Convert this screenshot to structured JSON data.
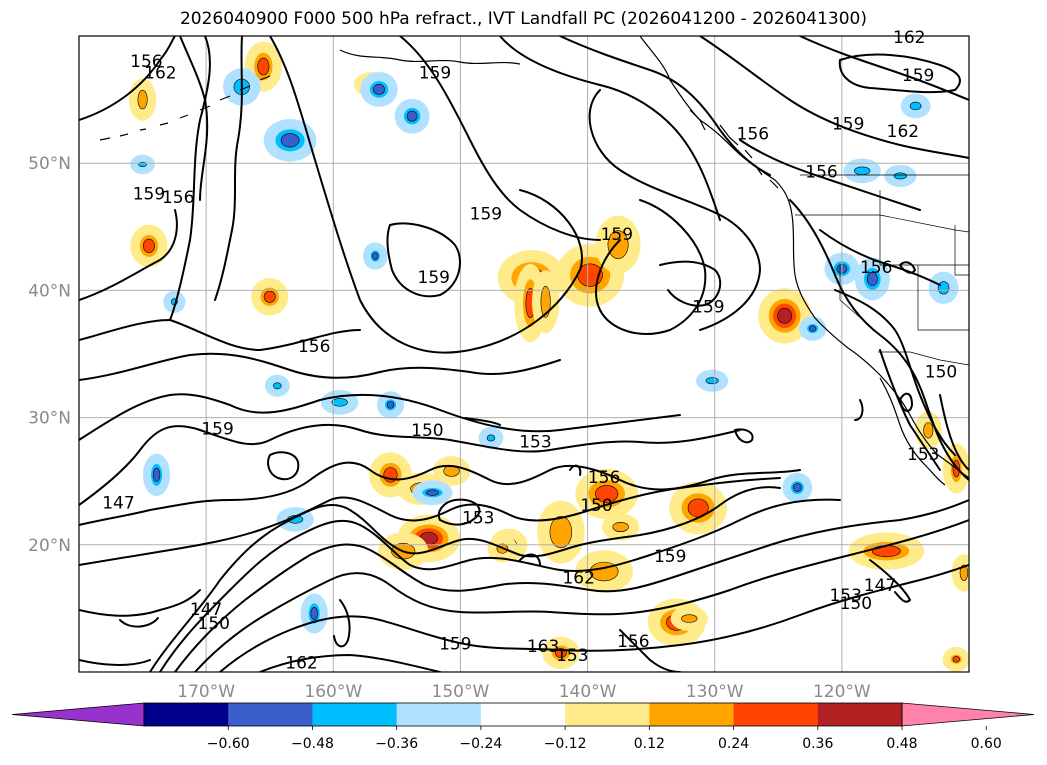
{
  "title": "2026040900 F000 500 hPa refract., IVT Landfall PC (2026041200 - 2026041300)",
  "map": {
    "projection": "PlateCarree",
    "lon_range": [
      -180,
      -110
    ],
    "lat_range": [
      10,
      60
    ],
    "lat_ticks": [
      {
        "value": 20,
        "label": "20°N"
      },
      {
        "value": 30,
        "label": "30°N"
      },
      {
        "value": 40,
        "label": "40°N"
      },
      {
        "value": 50,
        "label": "50°N"
      }
    ],
    "lon_ticks": [
      {
        "value": -170,
        "label": "170°W"
      },
      {
        "value": -160,
        "label": "160°W"
      },
      {
        "value": -150,
        "label": "150°W"
      },
      {
        "value": -140,
        "label": "140°W"
      },
      {
        "value": -130,
        "label": "130°W"
      },
      {
        "value": -120,
        "label": "120°W"
      }
    ],
    "grid": true,
    "contour_labels": [
      {
        "text": "156",
        "lon": -174.7,
        "lat": 57.8
      },
      {
        "text": "162",
        "lon": -173.6,
        "lat": 56.9
      },
      {
        "text": "159",
        "lon": -152.0,
        "lat": 56.9
      },
      {
        "text": "162",
        "lon": -114.7,
        "lat": 59.7
      },
      {
        "text": "159",
        "lon": -114.0,
        "lat": 56.7
      },
      {
        "text": "159",
        "lon": -119.5,
        "lat": 52.9
      },
      {
        "text": "162",
        "lon": -115.2,
        "lat": 52.3
      },
      {
        "text": "156",
        "lon": -127.0,
        "lat": 52.1
      },
      {
        "text": "156",
        "lon": -121.6,
        "lat": 49.1
      },
      {
        "text": "159",
        "lon": -174.5,
        "lat": 47.4
      },
      {
        "text": "156",
        "lon": -172.2,
        "lat": 47.1
      },
      {
        "text": "159",
        "lon": -148.0,
        "lat": 45.8
      },
      {
        "text": "159",
        "lon": -137.7,
        "lat": 44.2
      },
      {
        "text": "159",
        "lon": -152.1,
        "lat": 40.8
      },
      {
        "text": "156",
        "lon": -117.3,
        "lat": 41.6
      },
      {
        "text": "159",
        "lon": -130.5,
        "lat": 38.5
      },
      {
        "text": "156",
        "lon": -161.5,
        "lat": 35.4
      },
      {
        "text": "150",
        "lon": -112.2,
        "lat": 33.4
      },
      {
        "text": "159",
        "lon": -169.1,
        "lat": 28.9
      },
      {
        "text": "150",
        "lon": -152.6,
        "lat": 28.8
      },
      {
        "text": "153",
        "lon": -144.1,
        "lat": 27.9
      },
      {
        "text": "153",
        "lon": -113.6,
        "lat": 26.9
      },
      {
        "text": "156",
        "lon": -138.7,
        "lat": 25.1
      },
      {
        "text": "147",
        "lon": -176.9,
        "lat": 23.1
      },
      {
        "text": "150",
        "lon": -139.3,
        "lat": 22.9
      },
      {
        "text": "153",
        "lon": -148.6,
        "lat": 21.9
      },
      {
        "text": "159",
        "lon": -133.5,
        "lat": 18.9
      },
      {
        "text": "162",
        "lon": -140.7,
        "lat": 17.2
      },
      {
        "text": "153",
        "lon": -119.7,
        "lat": 15.8
      },
      {
        "text": "150",
        "lon": -118.9,
        "lat": 15.2
      },
      {
        "text": "147",
        "lon": -117.0,
        "lat": 16.6
      },
      {
        "text": "147",
        "lon": -170.0,
        "lat": 14.7
      },
      {
        "text": "150",
        "lon": -169.4,
        "lat": 13.6
      },
      {
        "text": "159",
        "lon": -150.4,
        "lat": 12.0
      },
      {
        "text": "156",
        "lon": -136.4,
        "lat": 12.2
      },
      {
        "text": "153",
        "lon": -141.2,
        "lat": 11.1
      },
      {
        "text": "163",
        "lon": -143.5,
        "lat": 11.8
      },
      {
        "text": "162",
        "lon": -162.5,
        "lat": 10.5
      }
    ],
    "positive_blobs": [
      {
        "lon": -144.4,
        "lat": 41.0,
        "rx": 2.2,
        "ry": 1.7,
        "level": 0.36
      },
      {
        "lon": -139.8,
        "lat": 41.2,
        "rx": 2.2,
        "ry": 2.0,
        "level": 0.36
      },
      {
        "lon": -137.6,
        "lat": 43.6,
        "rx": 1.3,
        "ry": 1.8,
        "level": 0.24
      },
      {
        "lon": -142.1,
        "lat": 21.0,
        "rx": 1.4,
        "ry": 2.0,
        "level": 0.24
      },
      {
        "lon": -152.5,
        "lat": 20.5,
        "rx": 2.0,
        "ry": 1.4,
        "level": 0.48
      },
      {
        "lon": -154.5,
        "lat": 19.5,
        "rx": 1.5,
        "ry": 1.0,
        "level": 0.24
      },
      {
        "lon": -155.5,
        "lat": 25.5,
        "rx": 1.2,
        "ry": 1.3,
        "level": 0.36
      },
      {
        "lon": -153.0,
        "lat": 24.4,
        "rx": 1.5,
        "ry": 0.8,
        "level": 0.24
      },
      {
        "lon": -150.7,
        "lat": 25.8,
        "rx": 1.0,
        "ry": 0.7,
        "level": 0.24
      },
      {
        "lon": -138.5,
        "lat": 24.0,
        "rx": 2.0,
        "ry": 1.5,
        "level": 0.36
      },
      {
        "lon": -137.4,
        "lat": 21.4,
        "rx": 1.0,
        "ry": 0.6,
        "level": 0.24
      },
      {
        "lon": -144.5,
        "lat": 39.0,
        "rx": 0.8,
        "ry": 2.6,
        "level": 0.36
      },
      {
        "lon": -143.3,
        "lat": 39.1,
        "rx": 0.6,
        "ry": 2.0,
        "level": 0.24
      },
      {
        "lon": -146.2,
        "lat": 20.0,
        "rx": 1.0,
        "ry": 0.8,
        "level": 0.24
      },
      {
        "lon": -138.7,
        "lat": 17.9,
        "rx": 1.8,
        "ry": 1.2,
        "level": 0.24
      },
      {
        "lon": -133.0,
        "lat": 13.9,
        "rx": 1.8,
        "ry": 1.4,
        "level": 0.36
      },
      {
        "lon": -131.3,
        "lat": 22.9,
        "rx": 1.8,
        "ry": 1.6,
        "level": 0.36
      },
      {
        "lon": -124.5,
        "lat": 38.0,
        "rx": 1.6,
        "ry": 1.7,
        "level": 0.48
      },
      {
        "lon": -116.5,
        "lat": 19.5,
        "rx": 2.5,
        "ry": 1.0,
        "level": 0.36
      },
      {
        "lon": -174.5,
        "lat": 43.5,
        "rx": 1.0,
        "ry": 1.2,
        "level": 0.36
      },
      {
        "lon": -165.0,
        "lat": 39.5,
        "rx": 1.0,
        "ry": 1.0,
        "level": 0.36
      },
      {
        "lon": -165.5,
        "lat": 57.6,
        "rx": 1.0,
        "ry": 1.5,
        "level": 0.36
      },
      {
        "lon": -175.0,
        "lat": 55.0,
        "rx": 0.6,
        "ry": 1.2,
        "level": 0.24
      },
      {
        "lon": -157.0,
        "lat": 56.2,
        "rx": 0.9,
        "ry": 0.5,
        "level": 0.24
      },
      {
        "lon": -146.7,
        "lat": 19.7,
        "rx": 0.7,
        "ry": 0.6,
        "level": 0.24
      },
      {
        "lon": -113.2,
        "lat": 29.0,
        "rx": 0.6,
        "ry": 1.0,
        "level": 0.24
      },
      {
        "lon": -111.0,
        "lat": 26.0,
        "rx": 0.6,
        "ry": 1.5,
        "level": 0.36
      },
      {
        "lon": -142.1,
        "lat": 11.5,
        "rx": 1.0,
        "ry": 0.8,
        "level": 0.36
      },
      {
        "lon": -132.0,
        "lat": 14.2,
        "rx": 1.0,
        "ry": 0.5,
        "level": 0.24
      },
      {
        "lon": -110.4,
        "lat": 17.8,
        "rx": 0.5,
        "ry": 1.0,
        "level": 0.24
      },
      {
        "lon": -111.0,
        "lat": 11.0,
        "rx": 0.6,
        "ry": 0.5,
        "level": 0.36
      }
    ],
    "negative_blobs": [
      {
        "lon": -156.4,
        "lat": 55.8,
        "rx": 1.0,
        "ry": 0.9,
        "level": -0.36
      },
      {
        "lon": -163.4,
        "lat": 51.8,
        "rx": 1.6,
        "ry": 1.2,
        "level": -0.36
      },
      {
        "lon": -167.2,
        "lat": 56.0,
        "rx": 1.0,
        "ry": 1.0,
        "level": -0.24
      },
      {
        "lon": -117.6,
        "lat": 40.9,
        "rx": 0.9,
        "ry": 1.2,
        "level": -0.36
      },
      {
        "lon": -120.0,
        "lat": 41.7,
        "rx": 0.9,
        "ry": 0.8,
        "level": -0.36
      },
      {
        "lon": -118.4,
        "lat": 49.4,
        "rx": 1.0,
        "ry": 0.5,
        "level": -0.24
      },
      {
        "lon": -173.9,
        "lat": 25.5,
        "rx": 0.6,
        "ry": 1.2,
        "level": -0.36
      },
      {
        "lon": -161.5,
        "lat": 14.6,
        "rx": 0.6,
        "ry": 1.1,
        "level": -0.36
      },
      {
        "lon": -123.5,
        "lat": 24.5,
        "rx": 0.7,
        "ry": 0.7,
        "level": -0.36
      },
      {
        "lon": -152.2,
        "lat": 24.1,
        "rx": 1.1,
        "ry": 0.5,
        "level": -0.36
      },
      {
        "lon": -159.5,
        "lat": 31.2,
        "rx": 1.0,
        "ry": 0.5,
        "level": -0.24
      },
      {
        "lon": -155.5,
        "lat": 31.0,
        "rx": 0.6,
        "ry": 0.6,
        "level": -0.36
      },
      {
        "lon": -163.0,
        "lat": 22.0,
        "rx": 1.0,
        "ry": 0.5,
        "level": -0.24
      },
      {
        "lon": -130.2,
        "lat": 32.9,
        "rx": 0.8,
        "ry": 0.4,
        "level": -0.24
      },
      {
        "lon": -112.0,
        "lat": 40.2,
        "rx": 0.7,
        "ry": 0.8,
        "level": -0.24
      },
      {
        "lon": -115.4,
        "lat": 49.0,
        "rx": 0.8,
        "ry": 0.4,
        "level": -0.24
      },
      {
        "lon": -114.2,
        "lat": 54.5,
        "rx": 0.7,
        "ry": 0.5,
        "level": -0.24
      },
      {
        "lon": -122.3,
        "lat": 37.0,
        "rx": 0.6,
        "ry": 0.5,
        "level": -0.36
      },
      {
        "lon": -147.6,
        "lat": 28.4,
        "rx": 0.5,
        "ry": 0.4,
        "level": -0.24
      },
      {
        "lon": -156.7,
        "lat": 42.7,
        "rx": 0.5,
        "ry": 0.6,
        "level": -0.36
      },
      {
        "lon": -153.8,
        "lat": 53.7,
        "rx": 0.9,
        "ry": 0.9,
        "level": -0.36
      },
      {
        "lon": -164.4,
        "lat": 32.5,
        "rx": 0.5,
        "ry": 0.4,
        "level": -0.24
      },
      {
        "lon": -172.5,
        "lat": 39.1,
        "rx": 0.4,
        "ry": 0.4,
        "level": -0.24
      },
      {
        "lon": -175.0,
        "lat": 49.9,
        "rx": 0.5,
        "ry": 0.3,
        "level": -0.24
      }
    ]
  },
  "colorbar": {
    "colors": [
      "#9932cc",
      "#00008b",
      "#3a5fcd",
      "#00bfff",
      "#b0e2ff",
      "#ffffff",
      "#ffeb8a",
      "#ffa500",
      "#ff4500",
      "#b22222",
      "#ff82ab"
    ],
    "tick_labels": [
      "−0.60",
      "−0.48",
      "−0.36",
      "−0.24",
      "−0.12",
      "0.12",
      "0.24",
      "0.36",
      "0.48",
      "0.60"
    ]
  }
}
